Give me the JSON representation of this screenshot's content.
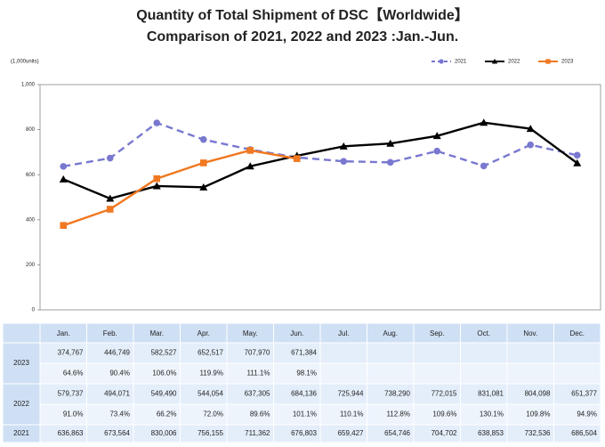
{
  "chart_data": {
    "type": "line",
    "title": [
      "Quantity of Total Shipment of DSC【Worldwide】",
      "Comparison of 2021, 2022 and 2023 :Jan.-Jun."
    ],
    "y_label": "(1,000units)",
    "categories": [
      "Jan.",
      "Feb.",
      "Mar.",
      "Apr.",
      "May.",
      "Jun.",
      "Jul.",
      "Aug.",
      "Sep.",
      "Oct.",
      "Nov.",
      "Dec."
    ],
    "ylim": [
      0,
      1000
    ],
    "yticks": [
      0,
      200,
      400,
      600,
      800,
      {
        "value": 1000,
        "label": "1,000"
      }
    ],
    "grid": false,
    "legend": "top-right",
    "series": [
      {
        "name": "2021",
        "color": "#7878d0",
        "dash": true,
        "marker": "circle",
        "values": [
          636.863,
          673.564,
          830.006,
          756.155,
          711.362,
          676.803,
          659.427,
          654.746,
          704.702,
          638.853,
          732.536,
          686.504
        ]
      },
      {
        "name": "2022",
        "color": "#000000",
        "dash": false,
        "marker": "triangle",
        "values": [
          579.737,
          494.071,
          549.49,
          544.054,
          637.305,
          684.136,
          725.944,
          738.29,
          772.015,
          831.081,
          804.098,
          651.377
        ]
      },
      {
        "name": "2023",
        "color": "#f07820",
        "dash": false,
        "marker": "square",
        "values": [
          374.767,
          446.749,
          582.527,
          652.517,
          707.97,
          671.384,
          null,
          null,
          null,
          null,
          null,
          null
        ]
      }
    ]
  },
  "table": {
    "rows": [
      {
        "year": "2023",
        "values": [
          "374,767",
          "446,749",
          "582,527",
          "652,517",
          "707,970",
          "671,384"
        ],
        "ratios": [
          "64.6%",
          "90.4%",
          "106.0%",
          "119.9%",
          "111.1%",
          "98.1%"
        ]
      },
      {
        "year": "2022",
        "values": [
          "579,737",
          "494,071",
          "549,490",
          "544,054",
          "637,305",
          "684,136",
          "725,944",
          "738,290",
          "772,015",
          "831,081",
          "804,098",
          "651,377"
        ],
        "ratios": [
          "91.0%",
          "73.4%",
          "66.2%",
          "72.0%",
          "89.6%",
          "101.1%",
          "110.1%",
          "112.8%",
          "109.6%",
          "130.1%",
          "109.8%",
          "94.9%"
        ]
      },
      {
        "year": "2021",
        "values": [
          "636,863",
          "673,564",
          "830,006",
          "756,155",
          "711,362",
          "676,803",
          "659,427",
          "654,746",
          "704,702",
          "638,853",
          "732,536",
          "686,504"
        ]
      }
    ]
  }
}
